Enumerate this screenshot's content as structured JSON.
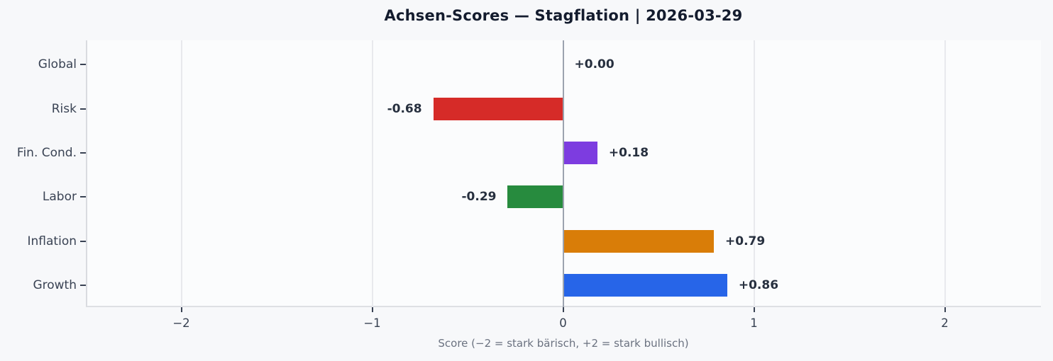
{
  "chart_data": {
    "type": "bar",
    "orientation": "horizontal",
    "title": "Achsen-Scores — Stagflation | 2026-03-29",
    "xlabel": "Score (−2 = stark bärisch, +2 = stark bullisch)",
    "categories": [
      "Global",
      "Risk",
      "Fin. Cond.",
      "Labor",
      "Inflation",
      "Growth"
    ],
    "values": [
      0.0,
      -0.68,
      0.18,
      -0.29,
      0.79,
      0.86
    ],
    "value_labels": [
      "+0.00",
      "-0.68",
      "+0.18",
      "-0.29",
      "+0.79",
      "+0.86"
    ],
    "bar_colors": [
      "#9ca3af",
      "#d62b28",
      "#7d3ce0",
      "#278b3e",
      "#d97d08",
      "#2765e8"
    ],
    "xlim": [
      -2.5,
      2.5
    ],
    "x_ticks": [
      -2,
      -1,
      0,
      1,
      2
    ],
    "x_tick_labels": [
      "−2",
      "−1",
      "0",
      "1",
      "2"
    ],
    "grid": "vertical-only",
    "legend": "none",
    "zero_line": true,
    "colors": {
      "figure_background": "#f7f8fa",
      "axes_background": "#fbfcfd",
      "gridline": "#e8e9ed",
      "zero_line": "#9ca3af",
      "title_text": "#141c2e",
      "tick_text": "#374151",
      "value_text": "#27303f",
      "xlabel_text": "#6b7280"
    }
  }
}
